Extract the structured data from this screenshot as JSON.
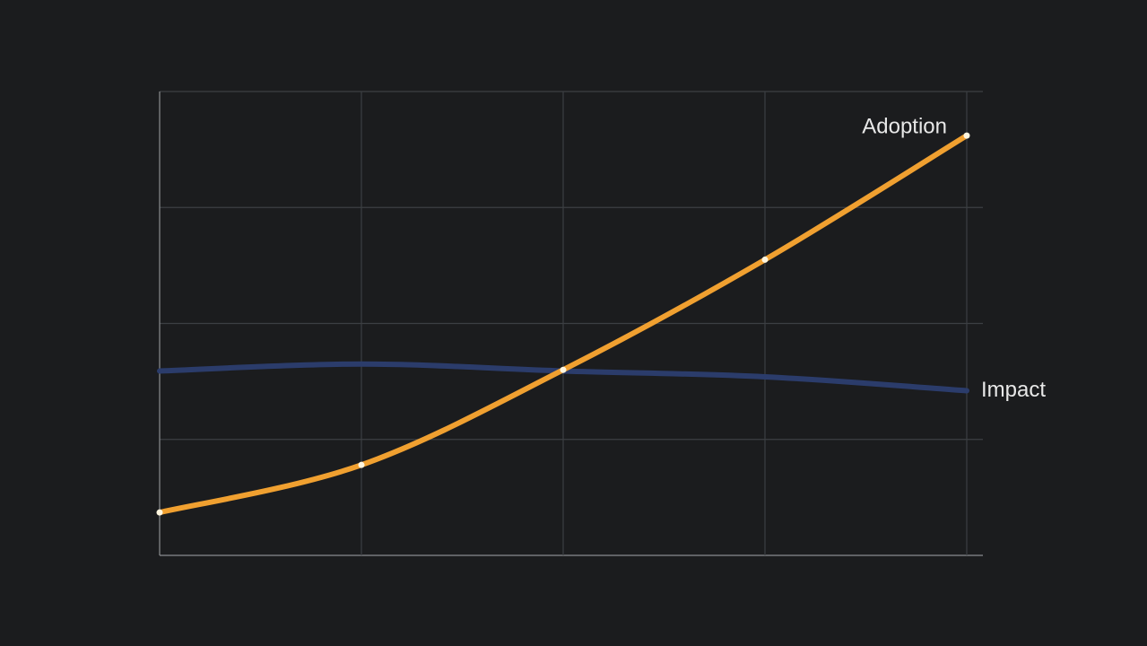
{
  "chart_data": {
    "type": "line",
    "x": [
      0,
      1,
      2,
      3,
      4
    ],
    "xlim": [
      0,
      4.08
    ],
    "xticks": [
      0,
      1,
      2,
      3,
      4
    ],
    "ylim": [
      0,
      4
    ],
    "yticks": [
      0,
      1,
      2,
      3,
      4
    ],
    "grid": true,
    "series": [
      {
        "name": "Adoption",
        "color": "#f0a030",
        "markers": true,
        "values": [
          0.37,
          0.78,
          1.6,
          2.55,
          3.62
        ]
      },
      {
        "name": "Impact",
        "color": "#2b3c6b",
        "markers": false,
        "values": [
          1.59,
          1.65,
          1.59,
          1.54,
          1.42
        ]
      }
    ]
  }
}
